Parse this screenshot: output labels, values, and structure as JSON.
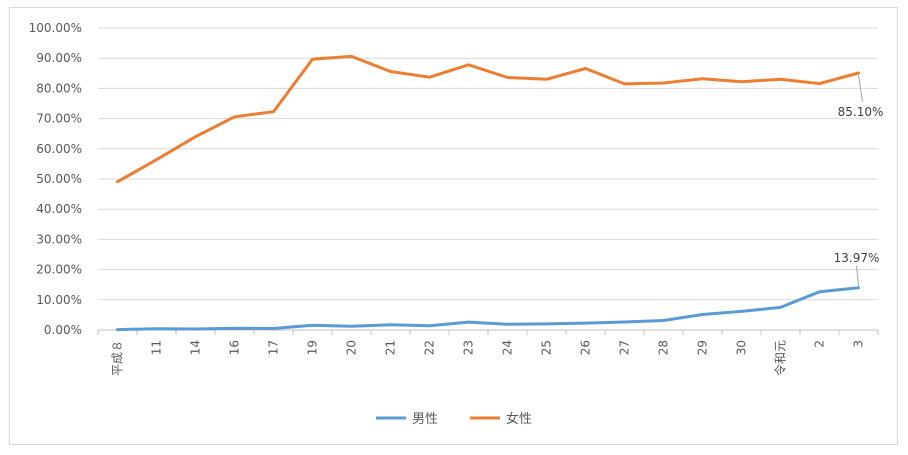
{
  "chart_data": {
    "type": "line",
    "title": "",
    "xlabel": "",
    "ylabel": "",
    "ylim": [
      0,
      100
    ],
    "y_tick_step": 10,
    "y_tick_format": "percent_2dp",
    "grid": true,
    "legend_position": "bottom",
    "categories": [
      "平成８",
      "11",
      "14",
      "16",
      "17",
      "19",
      "20",
      "21",
      "22",
      "23",
      "24",
      "25",
      "26",
      "27",
      "28",
      "29",
      "30",
      "令和元",
      "2",
      "3"
    ],
    "series": [
      {
        "name": "男性",
        "color": "#5b9bd5",
        "values": [
          0.12,
          0.42,
          0.33,
          0.56,
          0.5,
          1.56,
          1.23,
          1.72,
          1.38,
          2.63,
          1.89,
          2.03,
          2.3,
          2.65,
          3.16,
          5.14,
          6.16,
          7.48,
          12.65,
          13.97
        ]
      },
      {
        "name": "女性",
        "color": "#ed7d31",
        "values": [
          49.1,
          56.4,
          64.0,
          70.6,
          72.3,
          89.7,
          90.6,
          85.6,
          83.7,
          87.8,
          83.6,
          83.0,
          86.6,
          81.5,
          81.8,
          83.2,
          82.2,
          83.0,
          81.6,
          85.1
        ]
      }
    ],
    "data_labels": [
      {
        "series": 1,
        "index": 19,
        "text": "85.10%"
      },
      {
        "series": 0,
        "index": 19,
        "text": "13.97%"
      }
    ]
  }
}
